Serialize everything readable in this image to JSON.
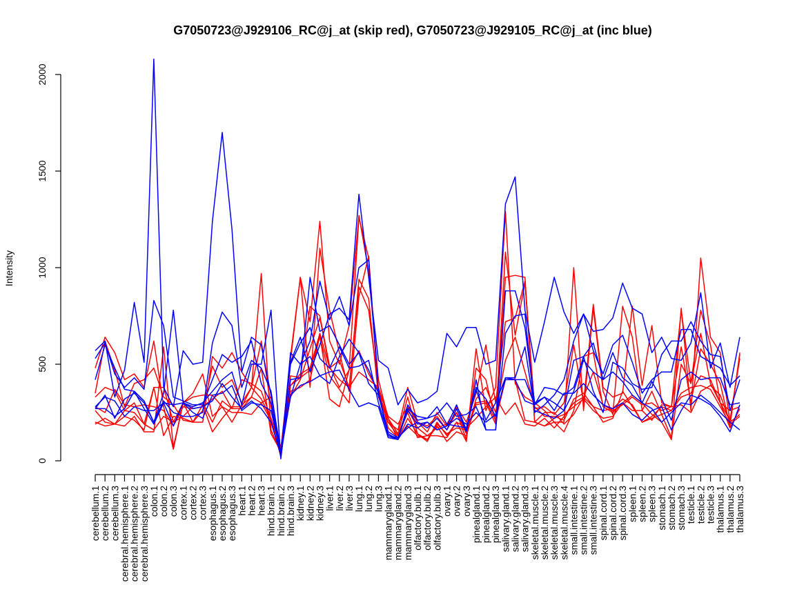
{
  "chart_data": {
    "type": "line",
    "title": "G7050723@J929106_RC@j_at (skip red), G7050723@J929105_RC@j_at (inc blue)",
    "xlabel": "",
    "ylabel": "Intensity",
    "ylim": [
      0,
      2000
    ],
    "yticks": [
      0,
      500,
      1000,
      1500,
      2000
    ],
    "categories": [
      "cerebellum.1",
      "cerebellum.2",
      "cerebellum.3",
      "cerebral.hemisphere.1",
      "cerebral.hemisphere.2",
      "cerebral.hemisphere.3",
      "colon.1",
      "colon.2",
      "colon.3",
      "cortex.1",
      "cortex.2",
      "cortex.3",
      "esophagus.1",
      "esophagus.2",
      "esophagus.3",
      "heart.1",
      "heart.2",
      "heart.3",
      "hind.brain.1",
      "hind.brain.2",
      "hind.brain.3",
      "kidney.1",
      "kidney.2",
      "kidney.3",
      "liver.1",
      "liver.2",
      "liver.3",
      "lung.1",
      "lung.2",
      "lung.3",
      "mammarygland.1",
      "mammarygland.2",
      "mammarygland.3",
      "olfactory.bulb.1",
      "olfactory.bulb.2",
      "olfactory.bulb.3",
      "ovary.1",
      "ovary.2",
      "ovary.3",
      "pinealgland.1",
      "pinealgland.2",
      "pinealgland.3",
      "salivary.gland.1",
      "salivary.gland.2",
      "salivary.gland.3",
      "skeletal.muscle.1",
      "skeletal.muscle.2",
      "skeletal.muscle.3",
      "skeletal.muscle.4",
      "small.intestine.1",
      "small.intestine.2",
      "small.intestine.3",
      "spinal.cord.1",
      "spinal.cord.2",
      "spinal.cord.3",
      "spleen.1",
      "spleen.2",
      "spleen.3",
      "stomach.1",
      "stomach.2",
      "stomach.3",
      "testicle.1",
      "testicle.2",
      "testicle.3",
      "thalamus.1",
      "thalamus.2",
      "thalamus.3"
    ],
    "series": [
      {
        "name": "skip red 1",
        "color": "#ff0000",
        "values": [
          480,
          640,
          560,
          420,
          450,
          380,
          620,
          280,
          60,
          300,
          200,
          200,
          540,
          480,
          560,
          460,
          380,
          620,
          280,
          60,
          520,
          950,
          720,
          1240,
          620,
          500,
          700,
          1270,
          980,
          420,
          220,
          140,
          330,
          140,
          100,
          200,
          130,
          200,
          100,
          580,
          260,
          380,
          1290,
          400,
          330,
          300,
          260,
          200,
          200,
          1000,
          260,
          790,
          360,
          240,
          800,
          640,
          260,
          360,
          240,
          120,
          790,
          260,
          1050,
          640,
          560,
          200,
          550
        ]
      },
      {
        "name": "skip red 2",
        "color": "#ff0000",
        "values": [
          350,
          620,
          470,
          280,
          400,
          420,
          480,
          330,
          290,
          210,
          200,
          260,
          490,
          380,
          420,
          300,
          380,
          970,
          160,
          40,
          540,
          950,
          380,
          1100,
          780,
          560,
          360,
          940,
          840,
          330,
          200,
          160,
          380,
          200,
          150,
          250,
          180,
          250,
          110,
          480,
          420,
          200,
          1080,
          650,
          920,
          270,
          280,
          240,
          300,
          600,
          300,
          810,
          380,
          330,
          350,
          800,
          390,
          700,
          300,
          280,
          780,
          400,
          780,
          600,
          300,
          210,
          530
        ]
      },
      {
        "name": "skip red 3",
        "color": "#ff0000",
        "values": [
          200,
          180,
          190,
          230,
          210,
          160,
          380,
          130,
          230,
          220,
          200,
          290,
          150,
          220,
          280,
          280,
          380,
          320,
          220,
          20,
          440,
          430,
          800,
          750,
          490,
          380,
          470,
          1260,
          1050,
          340,
          200,
          130,
          270,
          170,
          130,
          170,
          190,
          280,
          200,
          350,
          600,
          300,
          720,
          740,
          930,
          200,
          180,
          200,
          150,
          260,
          540,
          560,
          280,
          250,
          300,
          340,
          300,
          240,
          200,
          110,
          500,
          400,
          660,
          400,
          300,
          170,
          270
        ]
      },
      {
        "name": "skip red 4",
        "color": "#ff0000",
        "values": [
          280,
          250,
          370,
          290,
          280,
          290,
          280,
          260,
          180,
          280,
          270,
          280,
          320,
          360,
          270,
          420,
          400,
          360,
          220,
          70,
          390,
          430,
          470,
          640,
          440,
          370,
          300,
          850,
          1060,
          350,
          220,
          110,
          220,
          140,
          110,
          190,
          140,
          170,
          160,
          290,
          300,
          190,
          950,
          960,
          950,
          200,
          250,
          250,
          190,
          240,
          330,
          460,
          290,
          260,
          290,
          330,
          290,
          300,
          260,
          280,
          590,
          300,
          580,
          500,
          400,
          180,
          560
        ]
      },
      {
        "name": "skip red 5",
        "color": "#ff0000",
        "values": [
          260,
          200,
          190,
          260,
          250,
          190,
          380,
          380,
          200,
          300,
          350,
          450,
          230,
          280,
          200,
          290,
          330,
          480,
          140,
          50,
          360,
          380,
          420,
          650,
          320,
          280,
          470,
          570,
          450,
          360,
          200,
          130,
          250,
          120,
          130,
          130,
          120,
          200,
          170,
          220,
          280,
          330,
          240,
          300,
          190,
          180,
          220,
          170,
          230,
          300,
          330,
          280,
          200,
          220,
          360,
          280,
          200,
          230,
          280,
          260,
          330,
          350,
          440,
          420,
          300,
          260,
          280
        ]
      },
      {
        "name": "skip red 6",
        "color": "#ff0000",
        "values": [
          190,
          220,
          190,
          180,
          230,
          150,
          150,
          590,
          70,
          300,
          330,
          340,
          340,
          280,
          250,
          250,
          240,
          300,
          210,
          40,
          390,
          450,
          480,
          660,
          480,
          520,
          380,
          900,
          780,
          380,
          170,
          120,
          180,
          130,
          110,
          180,
          100,
          150,
          130,
          300,
          310,
          210,
          420,
          420,
          210,
          200,
          180,
          220,
          240,
          280,
          320,
          260,
          220,
          230,
          300,
          260,
          260,
          210,
          290,
          280,
          290,
          250,
          360,
          390,
          340,
          200,
          240
        ]
      },
      {
        "name": "skip red 7",
        "color": "#ff0000",
        "values": [
          330,
          380,
          360,
          260,
          300,
          190,
          160,
          230,
          200,
          230,
          280,
          300,
          200,
          310,
          270,
          270,
          330,
          300,
          330,
          60,
          330,
          420,
          580,
          740,
          480,
          420,
          380,
          460,
          420,
          380,
          230,
          190,
          280,
          200,
          180,
          230,
          160,
          250,
          140,
          320,
          380,
          250,
          520,
          640,
          460,
          280,
          230,
          230,
          210,
          320,
          350,
          280,
          260,
          270,
          320,
          290,
          200,
          220,
          240,
          260,
          350,
          380,
          390,
          370,
          280,
          190,
          230
        ]
      },
      {
        "name": "inc blue 1",
        "color": "#0000ff",
        "values": [
          570,
          620,
          330,
          470,
          820,
          510,
          2080,
          380,
          280,
          570,
          500,
          510,
          1240,
          1700,
          1200,
          460,
          640,
          600,
          340,
          30,
          510,
          640,
          460,
          600,
          760,
          790,
          730,
          1380,
          950,
          520,
          480,
          290,
          370,
          300,
          320,
          360,
          660,
          590,
          690,
          690,
          500,
          520,
          1330,
          1470,
          780,
          510,
          720,
          950,
          770,
          660,
          760,
          670,
          680,
          740,
          920,
          790,
          760,
          560,
          640,
          530,
          520,
          610,
          870,
          480,
          610,
          380,
          640
        ]
      },
      {
        "name": "inc blue 2",
        "color": "#0000ff",
        "values": [
          530,
          610,
          450,
          380,
          430,
          370,
          830,
          700,
          330,
          310,
          290,
          290,
          420,
          550,
          510,
          540,
          620,
          400,
          300,
          20,
          560,
          500,
          620,
          930,
          730,
          850,
          700,
          1000,
          1040,
          360,
          130,
          110,
          290,
          210,
          220,
          240,
          300,
          230,
          240,
          280,
          160,
          160,
          660,
          750,
          760,
          250,
          290,
          340,
          420,
          620,
          760,
          570,
          450,
          600,
          650,
          510,
          350,
          420,
          460,
          460,
          680,
          680,
          540,
          510,
          480,
          390,
          440
        ]
      },
      {
        "name": "inc blue 3",
        "color": "#0000ff",
        "values": [
          270,
          340,
          220,
          320,
          350,
          300,
          200,
          350,
          780,
          300,
          280,
          300,
          360,
          420,
          460,
          290,
          500,
          500,
          780,
          10,
          420,
          430,
          950,
          670,
          700,
          600,
          500,
          560,
          400,
          340,
          150,
          120,
          170,
          200,
          170,
          220,
          160,
          270,
          150,
          420,
          160,
          160,
          880,
          880,
          690,
          300,
          330,
          300,
          260,
          520,
          540,
          360,
          250,
          510,
          480,
          400,
          370,
          380,
          550,
          620,
          620,
          720,
          620,
          550,
          540,
          260,
          420
        ]
      },
      {
        "name": "inc blue 4",
        "color": "#0000ff",
        "values": [
          420,
          600,
          480,
          370,
          360,
          310,
          200,
          310,
          250,
          230,
          230,
          250,
          610,
          770,
          700,
          380,
          520,
          480,
          360,
          40,
          500,
          610,
          690,
          530,
          480,
          590,
          480,
          490,
          520,
          300,
          140,
          110,
          270,
          230,
          220,
          280,
          190,
          180,
          170,
          370,
          210,
          300,
          430,
          420,
          310,
          290,
          380,
          370,
          340,
          380,
          540,
          610,
          420,
          560,
          430,
          390,
          300,
          410,
          320,
          210,
          420,
          460,
          420,
          430,
          430,
          290,
          300
        ]
      },
      {
        "name": "inc blue 5",
        "color": "#0000ff",
        "values": [
          270,
          270,
          230,
          270,
          360,
          270,
          190,
          300,
          180,
          300,
          270,
          280,
          310,
          400,
          330,
          270,
          310,
          270,
          200,
          30,
          340,
          390,
          410,
          440,
          460,
          470,
          370,
          280,
          300,
          280,
          120,
          110,
          190,
          170,
          200,
          160,
          180,
          220,
          190,
          250,
          200,
          240,
          420,
          420,
          420,
          290,
          330,
          260,
          350,
          350,
          400,
          340,
          290,
          270,
          300,
          240,
          210,
          260,
          280,
          160,
          260,
          340,
          320,
          290,
          230,
          150,
          290
        ]
      },
      {
        "name": "inc blue 6",
        "color": "#0000ff",
        "values": [
          280,
          330,
          310,
          230,
          280,
          260,
          260,
          300,
          290,
          300,
          250,
          220,
          340,
          350,
          390,
          260,
          300,
          290,
          260,
          40,
          330,
          500,
          540,
          440,
          400,
          540,
          630,
          560,
          470,
          350,
          130,
          120,
          260,
          190,
          200,
          160,
          180,
          290,
          160,
          380,
          320,
          230,
          430,
          430,
          590,
          260,
          240,
          220,
          260,
          360,
          520,
          460,
          420,
          460,
          410,
          340,
          300,
          270,
          200,
          250,
          300,
          290,
          340,
          300,
          250,
          200,
          160
        ]
      }
    ]
  }
}
